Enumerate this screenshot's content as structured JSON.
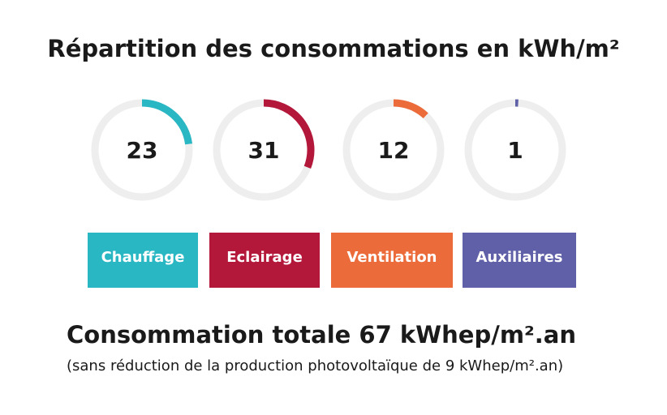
{
  "chart_data": {
    "type": "gauge",
    "title": "Répartition des consommations en kWh/m²",
    "categories": [
      "Chauffage",
      "Eclairage",
      "Ventilation",
      "Auxiliaires"
    ],
    "values": [
      23,
      31,
      12,
      1
    ],
    "colors": [
      "#29b7c4",
      "#b3173a",
      "#ec6b3b",
      "#6060a8"
    ],
    "ylim": [
      0,
      100
    ],
    "total": "Consommation totale 67 kWhep/m².an",
    "note": "(sans réduction de la production photovoltaïque de 9 kWhep/m².an)"
  }
}
